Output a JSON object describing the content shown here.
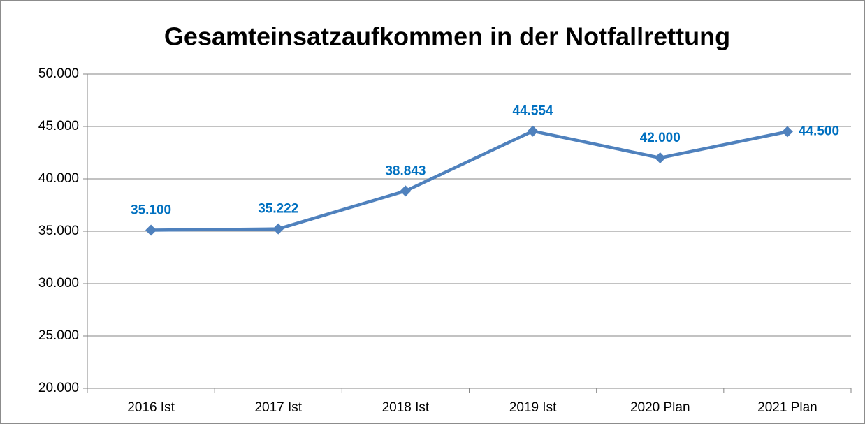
{
  "chart_data": {
    "type": "line",
    "title": "Gesamteinsatzaufkommen in der Notfallrettung",
    "categories": [
      "2016 Ist",
      "2017 Ist",
      "2018 Ist",
      "2019 Ist",
      "2020 Plan",
      "2021 Plan"
    ],
    "series": [
      {
        "name": "Gesamteinsatzaufkommen",
        "color": "#4f81bd",
        "values": [
          35100,
          35222,
          38843,
          44554,
          42000,
          44500
        ],
        "value_labels": [
          "35.100",
          "35.222",
          "38.843",
          "44.554",
          "42.000",
          "44.500"
        ]
      }
    ],
    "label_color": "#0070c0",
    "ylim": [
      20000,
      50000
    ],
    "yticks": [
      {
        "value": 20000,
        "label": "20.000"
      },
      {
        "value": 25000,
        "label": "25.000"
      },
      {
        "value": 30000,
        "label": "30.000"
      },
      {
        "value": 35000,
        "label": "35.000"
      },
      {
        "value": 40000,
        "label": "40.000"
      },
      {
        "value": 45000,
        "label": "45.000"
      },
      {
        "value": 50000,
        "label": "50.000"
      }
    ],
    "grid": true
  }
}
